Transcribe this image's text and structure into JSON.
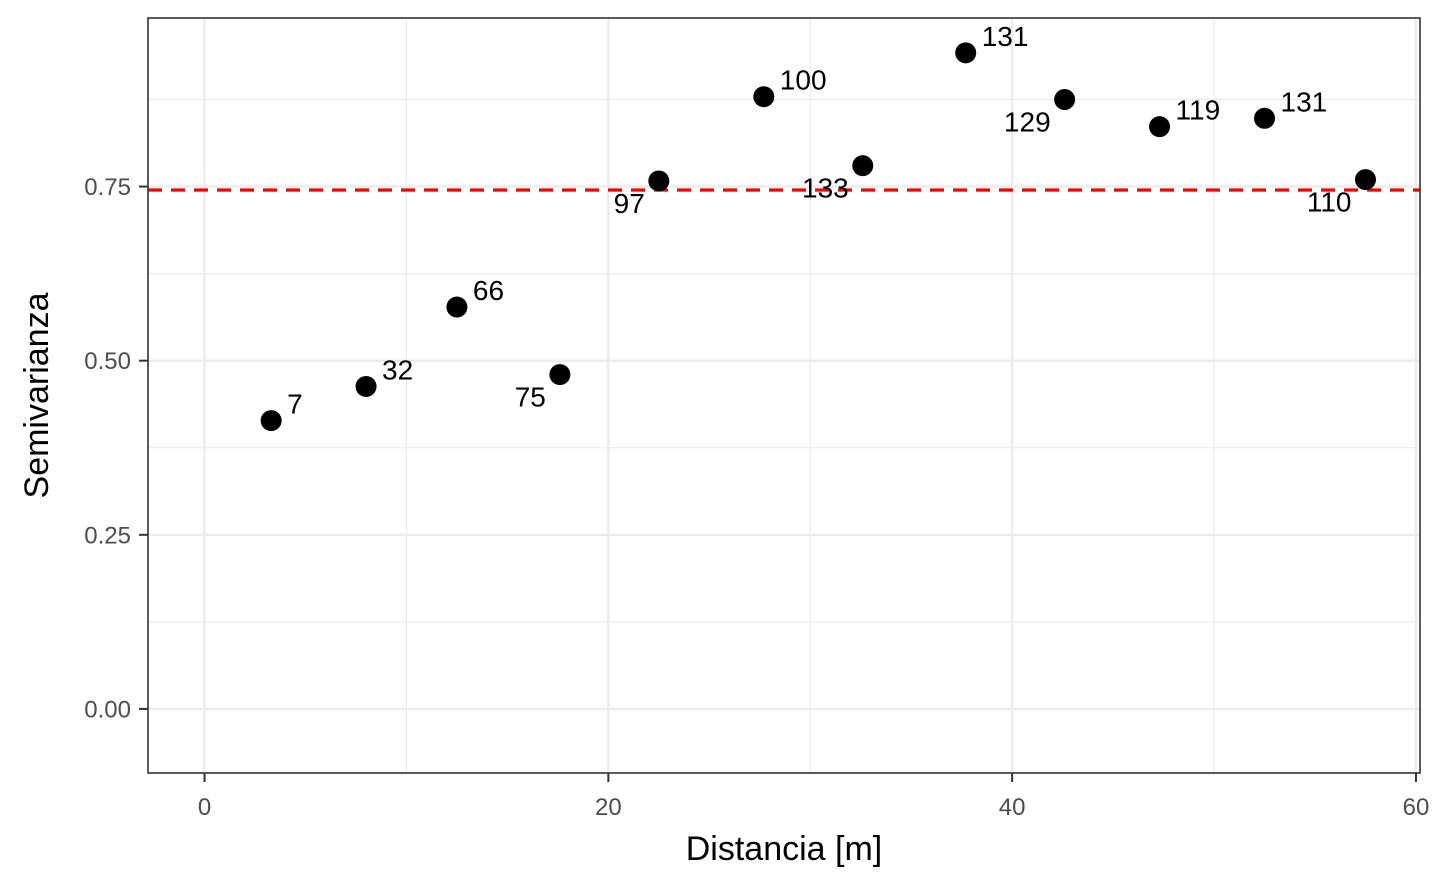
{
  "chart_data": {
    "type": "scatter",
    "title": "",
    "xlabel": "Distancia [m]",
    "ylabel": "Semivarianza",
    "xlim": [
      -2.8,
      60.2
    ],
    "ylim": [
      -0.092,
      0.992
    ],
    "xticks": [
      0,
      20,
      40,
      60
    ],
    "xtick_labels": [
      "0",
      "20",
      "40",
      "60"
    ],
    "yticks": [
      0.0,
      0.25,
      0.5,
      0.75
    ],
    "ytick_labels": [
      "0.00",
      "0.25",
      "0.50",
      "0.75"
    ],
    "grid": true,
    "reference_line": {
      "y": 0.745,
      "style": "dashed",
      "color": "#ff0000"
    },
    "points": [
      {
        "x": 3.3,
        "y": 0.414,
        "label": "7",
        "label_pos": "upper-right"
      },
      {
        "x": 8.0,
        "y": 0.463,
        "label": "32",
        "label_pos": "upper-right"
      },
      {
        "x": 12.5,
        "y": 0.577,
        "label": "66",
        "label_pos": "upper-right"
      },
      {
        "x": 17.6,
        "y": 0.48,
        "label": "75",
        "label_pos": "lower-left"
      },
      {
        "x": 22.5,
        "y": 0.758,
        "label": "97",
        "label_pos": "lower-left"
      },
      {
        "x": 27.7,
        "y": 0.879,
        "label": "100",
        "label_pos": "upper-right"
      },
      {
        "x": 32.6,
        "y": 0.78,
        "label": "133",
        "label_pos": "lower-left"
      },
      {
        "x": 37.7,
        "y": 0.942,
        "label": "131",
        "label_pos": "upper-right"
      },
      {
        "x": 42.6,
        "y": 0.875,
        "label": "129",
        "label_pos": "lower-left"
      },
      {
        "x": 47.3,
        "y": 0.836,
        "label": "119",
        "label_pos": "upper-right"
      },
      {
        "x": 52.5,
        "y": 0.848,
        "label": "131",
        "label_pos": "upper-right"
      },
      {
        "x": 57.5,
        "y": 0.76,
        "label": "110",
        "label_pos": "lower-left"
      }
    ],
    "colors": {
      "points": "#000000",
      "reference_line": "#ff0000",
      "grid": "#ebebeb",
      "panel_border": "#333333"
    }
  }
}
